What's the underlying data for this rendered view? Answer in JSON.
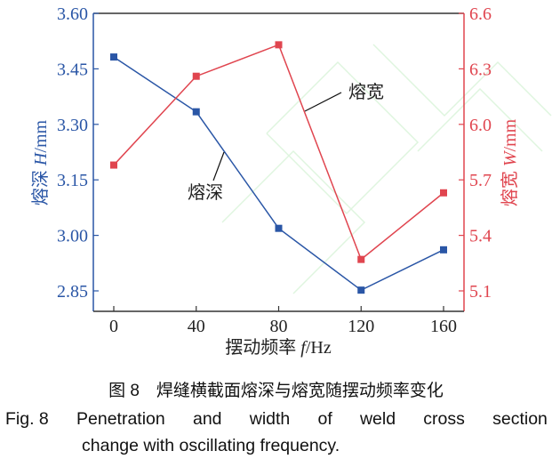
{
  "chart_data": {
    "type": "line",
    "x": [
      0,
      40,
      80,
      120,
      160
    ],
    "xlabel": "摆动频率 f/Hz",
    "xlabel_parts": [
      "摆动频率 ",
      "f",
      "/Hz"
    ],
    "xticks": [
      "0",
      "40",
      "80",
      "120",
      "160"
    ],
    "y_left": {
      "label_parts": [
        "熔深 ",
        "H",
        "/mm"
      ],
      "ylim": [
        2.8,
        3.6
      ],
      "ticks": [
        "2.85",
        "3.00",
        "3.15",
        "3.30",
        "3.45",
        "3.60"
      ],
      "color": "#2a56a6"
    },
    "y_right": {
      "label_parts": [
        "熔宽 ",
        "W",
        "/mm"
      ],
      "ylim": [
        5.0,
        6.6
      ],
      "ticks": [
        "5.1",
        "5.4",
        "5.7",
        "6.0",
        "6.3",
        "6.6"
      ],
      "color": "#e0454f"
    },
    "series": [
      {
        "name": "熔深",
        "axis": "left",
        "color": "#2a56a6",
        "values": [
          3.482,
          3.334,
          3.019,
          2.852,
          2.961
        ]
      },
      {
        "name": "熔宽",
        "axis": "right",
        "color": "#e0454f",
        "values": [
          5.78,
          6.26,
          6.43,
          5.27,
          5.63
        ]
      }
    ],
    "annotations": [
      "熔深",
      "熔宽"
    ],
    "grid": false,
    "legend": "none"
  },
  "caption": {
    "cn": "图 8　焊缝横截面熔深与熔宽随摆动频率变化",
    "en_line1": [
      "Fig. 8 ",
      "Penetration",
      "and",
      "width",
      "of",
      "weld",
      "cross",
      "section"
    ],
    "en_line2": "change with oscillating frequency."
  }
}
